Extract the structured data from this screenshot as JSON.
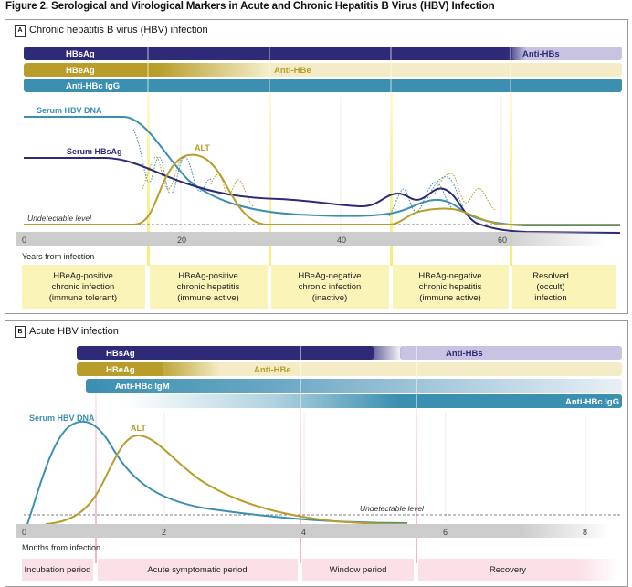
{
  "figure_title": "Figure 2. Serological and Virological Markers in Acute and Chronic Hepatitis B Virus (HBV) Infection",
  "panel_a": {
    "letter": "A",
    "title": "Chronic hepatitis B virus (HBV) infection",
    "bars": {
      "hbsag": "HBsAg",
      "anti_hbs": "Anti-HBs",
      "hbeag": "HBeAg",
      "anti_hbe": "Anti-HBe",
      "anti_hbc_igg": "Anti-HBc IgG"
    },
    "curve_labels": {
      "dna": "Serum HBV DNA",
      "hbsag": "Serum HBsAg",
      "alt": "ALT"
    },
    "undetectable": "Undetectable level",
    "axis_ticks": [
      "0",
      "20",
      "40",
      "60"
    ],
    "axis_title": "Years from infection",
    "phases": [
      [
        "HBeAg-positive",
        "chronic infection",
        "(immune tolerant)"
      ],
      [
        "HBeAg-positive",
        "chronic hepatitis",
        "(immune active)"
      ],
      [
        "HBeAg-negative",
        "chronic infection",
        "(inactive)"
      ],
      [
        "HBeAg-negative",
        "chronic hepatitis",
        "(immune active)"
      ],
      [
        "Resolved",
        "(occult)",
        "infection"
      ]
    ]
  },
  "panel_b": {
    "letter": "B",
    "title": "Acute HBV infection",
    "bars": {
      "hbsag": "HBsAg",
      "anti_hbs": "Anti-HBs",
      "hbeag": "HBeAg",
      "anti_hbe": "Anti-HBe",
      "anti_hbc_igm": "Anti-HBc IgM",
      "anti_hbc_igg": "Anti-HBc IgG"
    },
    "curve_labels": {
      "dna": "Serum HBV DNA",
      "alt": "ALT"
    },
    "undetectable": "Undetectable level",
    "axis_ticks": [
      "0",
      "2",
      "4",
      "6",
      "8"
    ],
    "axis_title": "Months from infection",
    "phases": [
      "Incubation period",
      "Acute symptomatic period",
      "Window period",
      "Recovery"
    ]
  },
  "colors": {
    "navy": "#2e2a78",
    "navy_light": "#c7c3e1",
    "gold": "#b89d2a",
    "gold_light": "#f3ecc6",
    "teal": "#3b8fb1",
    "teal_light": "#dde9f1",
    "phase_yellow": "#fbf4b8",
    "phase_pink": "#fbe0e7",
    "axis_gray": "#cfcfcf"
  }
}
